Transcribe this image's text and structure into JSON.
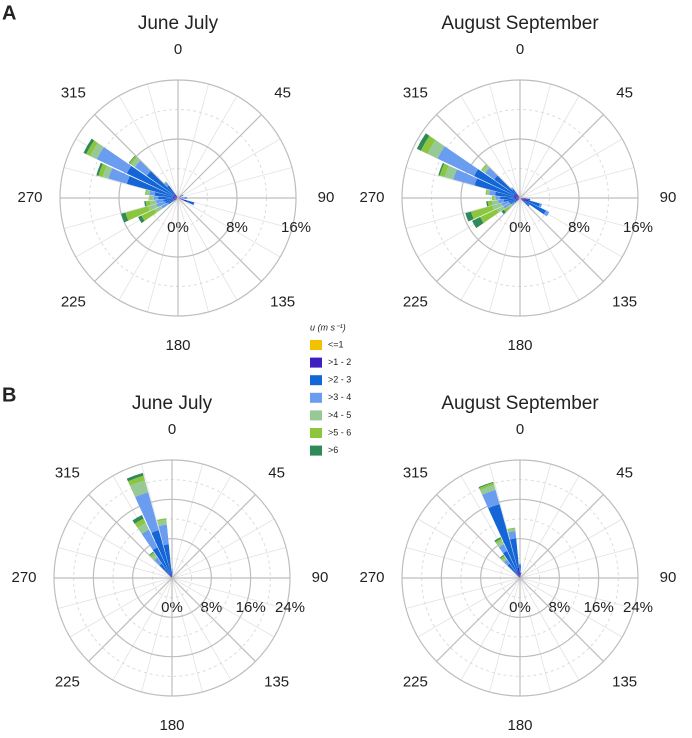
{
  "panel_labels": [
    "A",
    "B"
  ],
  "legend": {
    "title": "u (m s⁻¹)",
    "entries": [
      {
        "name": "<=1",
        "color": "#f2c200"
      },
      {
        "name": ">1 - 2",
        "color": "#3f1fc0"
      },
      {
        "name": ">2 - 3",
        "color": "#1466d6"
      },
      {
        "name": ">3 - 4",
        "color": "#6a9cf0"
      },
      {
        "name": ">4 - 5",
        "color": "#96c995"
      },
      {
        "name": ">5 - 6",
        "color": "#8cc63e"
      },
      {
        "name": ">6",
        "color": "#2f8a5a"
      }
    ]
  },
  "chart_data": [
    {
      "type": "windrose",
      "title": "June July",
      "direction_ticks": [
        0,
        45,
        90,
        135,
        180,
        225,
        270,
        315
      ],
      "rlim": [
        0,
        16
      ],
      "rticks": [
        {
          "value": 0,
          "label": "0%"
        },
        {
          "value": 8,
          "label": "8%"
        },
        {
          "value": 16,
          "label": "16%"
        }
      ],
      "x": [
        60,
        90,
        110,
        240,
        250,
        260,
        270,
        280,
        290,
        300,
        310,
        320
      ],
      "series": [
        {
          "values": [
            0.1,
            0.1,
            0.1,
            0.1,
            0.1,
            0.1,
            0.1,
            0.1,
            0.1,
            0.1,
            0.1,
            0.1
          ]
        },
        {
          "values": [
            0.4,
            0.6,
            1.2,
            0.4,
            0.5,
            0.4,
            0.6,
            0.6,
            0.6,
            0.6,
            0.6,
            0.5
          ]
        },
        {
          "values": [
            0.3,
            0.5,
            1.0,
            1.0,
            1.2,
            1.5,
            2.0,
            2.5,
            6.5,
            7.0,
            4.5,
            1.5
          ]
        },
        {
          "values": [
            0,
            0,
            0,
            1.0,
            1.2,
            1.0,
            0.6,
            0.7,
            2.6,
            4.5,
            2.0,
            0.5
          ]
        },
        {
          "values": [
            0,
            0,
            0,
            1.0,
            1.2,
            0.8,
            0.4,
            0.4,
            0.8,
            1.0,
            0.6,
            0.2
          ]
        },
        {
          "values": [
            0,
            0,
            0,
            2.0,
            3.2,
            0.6,
            0.2,
            0.2,
            0.6,
            0.6,
            0.3,
            0
          ]
        },
        {
          "values": [
            0,
            0,
            0,
            0.5,
            0.6,
            0.2,
            0,
            0,
            0.3,
            0.4,
            0.1,
            0
          ]
        }
      ]
    },
    {
      "type": "windrose",
      "title": "August September",
      "direction_ticks": [
        0,
        45,
        90,
        135,
        180,
        225,
        270,
        315
      ],
      "rlim": [
        0,
        16
      ],
      "rticks": [
        {
          "value": 0,
          "label": "0%"
        },
        {
          "value": 8,
          "label": "8%"
        },
        {
          "value": 16,
          "label": "16%"
        }
      ],
      "x": [
        100,
        110,
        120,
        130,
        230,
        240,
        250,
        260,
        270,
        280,
        290,
        300,
        310,
        320
      ],
      "series": [
        {
          "values": [
            0.1,
            0.1,
            0.1,
            0.1,
            0.1,
            0.1,
            0.1,
            0.1,
            0.1,
            0.1,
            0.1,
            0.1,
            0.1,
            0.1
          ]
        },
        {
          "values": [
            0.8,
            1.2,
            0.8,
            0.5,
            0.3,
            0.4,
            0.5,
            0.6,
            0.6,
            0.8,
            0.8,
            0.8,
            0.7,
            0.4
          ]
        },
        {
          "values": [
            0.5,
            1.5,
            3.0,
            1.0,
            0.5,
            1.0,
            1.0,
            1.5,
            2.0,
            2.5,
            5.5,
            6.0,
            3.5,
            1.0
          ]
        },
        {
          "values": [
            0,
            0.3,
            0.5,
            0,
            0.5,
            1.0,
            1.0,
            0.8,
            0.6,
            0.8,
            3.0,
            5.5,
            1.5,
            0.3
          ]
        },
        {
          "values": [
            0,
            0,
            0,
            0,
            0.5,
            1.0,
            1.3,
            0.8,
            0.3,
            0.3,
            1.2,
            1.5,
            0.5,
            0
          ]
        },
        {
          "values": [
            0,
            0,
            0,
            0,
            0.8,
            2.5,
            3.0,
            0.6,
            0.2,
            0.2,
            0.7,
            1.0,
            0.2,
            0
          ]
        },
        {
          "values": [
            0,
            0,
            0,
            0,
            0.4,
            1.2,
            0.8,
            0.2,
            0,
            0,
            0.2,
            0.6,
            0,
            0
          ]
        }
      ]
    },
    {
      "type": "windrose",
      "title": "June July",
      "direction_ticks": [
        0,
        45,
        90,
        135,
        180,
        225,
        270,
        315
      ],
      "rlim": [
        0,
        24
      ],
      "rticks": [
        {
          "value": 0,
          "label": "0%"
        },
        {
          "value": 8,
          "label": "8%"
        },
        {
          "value": 16,
          "label": "16%"
        },
        {
          "value": 24,
          "label": "24%"
        }
      ],
      "x": [
        320,
        330,
        340,
        350,
        0
      ],
      "series": [
        {
          "values": [
            0.1,
            0.1,
            0.1,
            0.1,
            0.1
          ]
        },
        {
          "values": [
            0.5,
            0.8,
            1.0,
            0.8,
            0.3
          ]
        },
        {
          "values": [
            3.0,
            6.0,
            9.0,
            6.0,
            1.0
          ]
        },
        {
          "values": [
            1.5,
            4.0,
            8.0,
            4.0,
            0.5
          ]
        },
        {
          "values": [
            0.8,
            1.5,
            2.5,
            1.0,
            0
          ]
        },
        {
          "values": [
            0.5,
            1.0,
            1.0,
            0.3,
            0
          ]
        },
        {
          "values": [
            0.2,
            0.8,
            0.6,
            0,
            0
          ]
        }
      ]
    },
    {
      "type": "windrose",
      "title": "August September",
      "direction_ticks": [
        0,
        45,
        90,
        135,
        180,
        225,
        270,
        315
      ],
      "rlim": [
        0,
        24
      ],
      "rticks": [
        {
          "value": 0,
          "label": "0%"
        },
        {
          "value": 8,
          "label": "8%"
        },
        {
          "value": 16,
          "label": "16%"
        },
        {
          "value": 24,
          "label": "24%"
        }
      ],
      "x": [
        320,
        330,
        340,
        350,
        0,
        10
      ],
      "series": [
        {
          "values": [
            0.1,
            0.1,
            0.1,
            0.1,
            0.1,
            0.1
          ]
        },
        {
          "values": [
            0.5,
            1.0,
            1.5,
            2.0,
            1.0,
            0.5
          ]
        },
        {
          "values": [
            3.0,
            5.0,
            14.0,
            6.0,
            1.5,
            0.5
          ]
        },
        {
          "values": [
            1.0,
            1.5,
            3.0,
            1.5,
            0.3,
            0
          ]
        },
        {
          "values": [
            0.5,
            0.8,
            1.0,
            0.5,
            0,
            0
          ]
        },
        {
          "values": [
            0.5,
            0.5,
            0.5,
            0.2,
            0,
            0
          ]
        },
        {
          "values": [
            0.2,
            0.3,
            0.2,
            0,
            0,
            0
          ]
        }
      ]
    }
  ]
}
